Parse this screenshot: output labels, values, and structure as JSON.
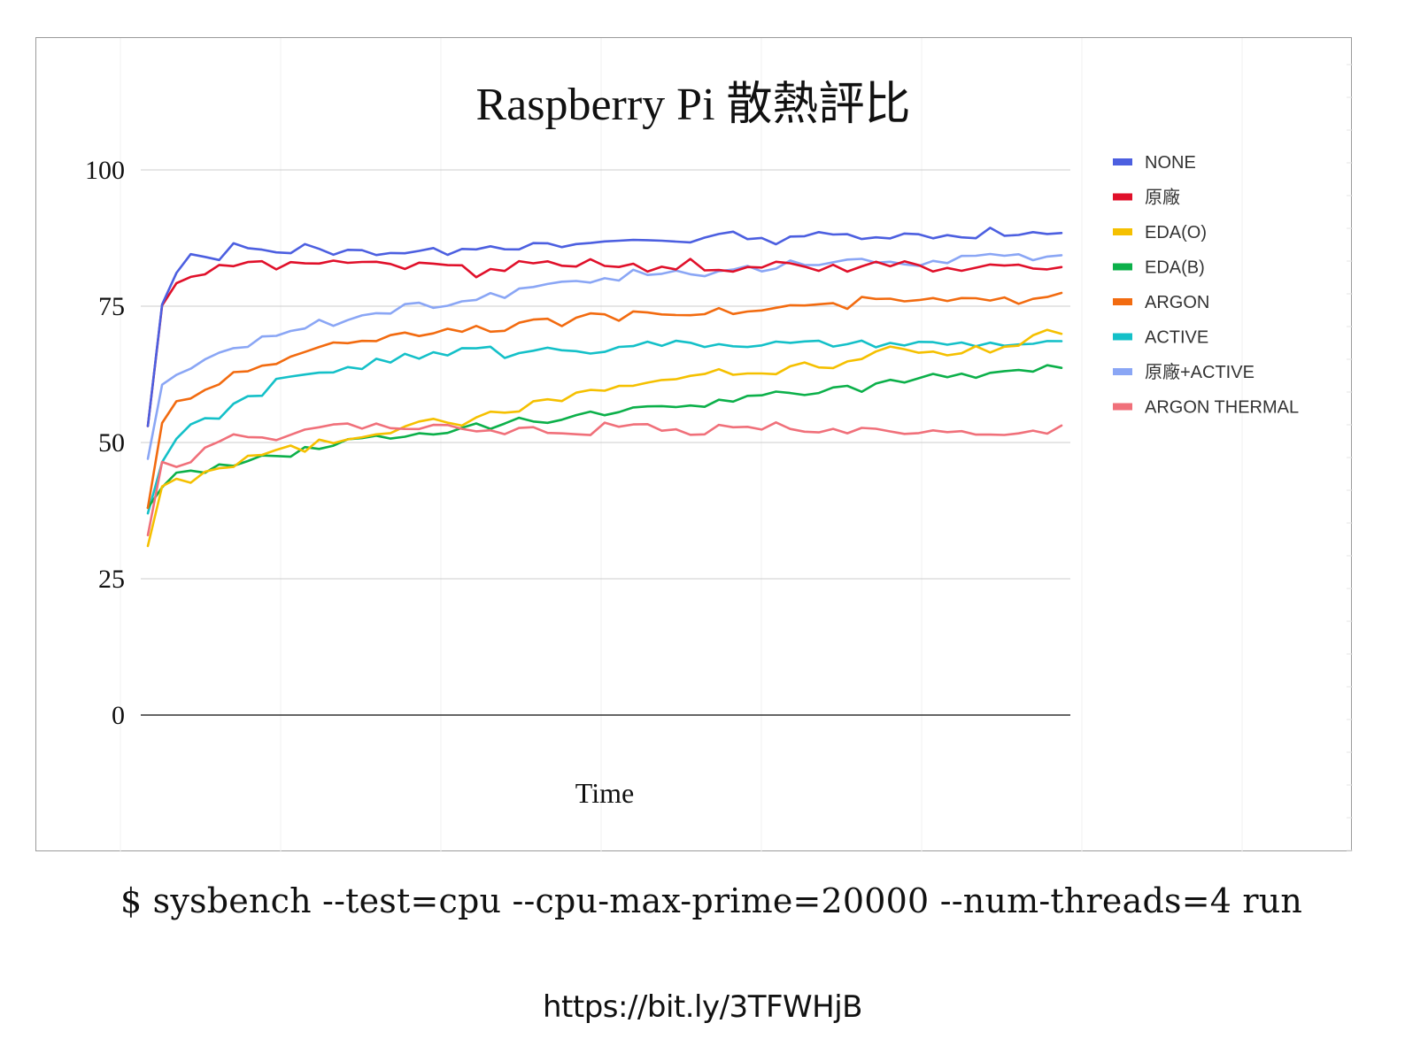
{
  "chart_data": {
    "type": "line",
    "title": "Raspberry Pi 散熱評比",
    "xlabel": "Time",
    "ylabel": "",
    "ylim": [
      0,
      100
    ],
    "yticks": [
      0,
      25,
      50,
      75,
      100
    ],
    "grid": true,
    "legend": "right",
    "points": 65,
    "series": [
      {
        "name": "NONE",
        "color": "#4C5FE0",
        "values": [
          53,
          75,
          81,
          84,
          84,
          84,
          86,
          86,
          86,
          85,
          85,
          86,
          85,
          85,
          85,
          85,
          85,
          85,
          85,
          85,
          85,
          85,
          86,
          86,
          86,
          86,
          86,
          86,
          86,
          86,
          86,
          86,
          87,
          87,
          87,
          87,
          87,
          87,
          87,
          88,
          88,
          88,
          88,
          87,
          87,
          88,
          88,
          88,
          88,
          88,
          88,
          88,
          88,
          88,
          88,
          88,
          88,
          88,
          88,
          89,
          88,
          88,
          88,
          88,
          88
        ]
      },
      {
        "name": "原廠",
        "color": "#E0102A",
        "values": [
          53,
          75,
          79,
          81,
          81,
          82,
          83,
          83,
          83,
          82,
          83,
          83,
          83,
          83,
          83,
          83,
          83,
          83,
          82,
          83,
          83,
          83,
          82,
          81,
          82,
          82,
          83,
          83,
          83,
          82,
          82,
          83,
          82,
          82,
          83,
          82,
          82,
          82,
          83,
          82,
          82,
          82,
          82,
          82,
          83,
          83,
          82,
          82,
          82,
          82,
          83,
          83,
          83,
          83,
          82,
          82,
          82,
          82,
          82,
          82,
          82,
          82,
          82,
          82,
          82
        ]
      },
      {
        "name": "EDA(O)",
        "color": "#F5C000",
        "values": [
          31,
          42,
          43,
          43,
          45,
          45,
          46,
          47,
          48,
          49,
          49,
          49,
          50,
          50,
          51,
          51,
          52,
          52,
          53,
          54,
          54,
          54,
          53,
          54,
          56,
          56,
          56,
          57,
          58,
          58,
          59,
          59,
          60,
          60,
          61,
          61,
          61,
          62,
          62,
          63,
          63,
          63,
          63,
          63,
          63,
          64,
          64,
          64,
          64,
          65,
          66,
          66,
          67,
          67,
          67,
          66,
          66,
          67,
          67,
          67,
          68,
          68,
          69,
          70,
          70
        ]
      },
      {
        "name": "EDA(B)",
        "color": "#0CB04A",
        "values": [
          38,
          42,
          44,
          45,
          45,
          46,
          46,
          47,
          47,
          48,
          48,
          49,
          49,
          50,
          50,
          51,
          51,
          51,
          51,
          52,
          52,
          52,
          53,
          53,
          53,
          54,
          54,
          54,
          54,
          54,
          55,
          55,
          55,
          55,
          56,
          56,
          56,
          57,
          57,
          57,
          58,
          58,
          58,
          58,
          59,
          59,
          59,
          59,
          60,
          60,
          60,
          61,
          61,
          61,
          62,
          62,
          62,
          62,
          62,
          63,
          63,
          63,
          63,
          64,
          64
        ]
      },
      {
        "name": "ARGON",
        "color": "#F26B10",
        "values": [
          38,
          54,
          57,
          58,
          59,
          61,
          63,
          63,
          64,
          65,
          66,
          67,
          67,
          68,
          68,
          69,
          69,
          70,
          70,
          70,
          70,
          71,
          71,
          71,
          71,
          71,
          72,
          72,
          72,
          72,
          73,
          73,
          73,
          73,
          74,
          74,
          74,
          74,
          74,
          74,
          74,
          74,
          74,
          74,
          75,
          75,
          75,
          75,
          75,
          75,
          76,
          76,
          76,
          76,
          76,
          76,
          76,
          76,
          76,
          76,
          76,
          76,
          77,
          77,
          78
        ]
      },
      {
        "name": "ACTIVE",
        "color": "#14C0C8",
        "values": [
          37,
          47,
          50,
          53,
          54,
          55,
          57,
          58,
          59,
          61,
          62,
          62,
          63,
          63,
          64,
          64,
          65,
          65,
          66,
          66,
          66,
          66,
          67,
          67,
          67,
          66,
          67,
          67,
          67,
          67,
          67,
          67,
          67,
          68,
          68,
          68,
          68,
          68,
          68,
          68,
          68,
          68,
          68,
          68,
          68,
          68,
          68,
          68,
          68,
          68,
          68,
          68,
          68,
          68,
          68,
          68,
          68,
          68,
          68,
          68,
          68,
          68,
          68,
          68,
          68
        ]
      },
      {
        "name": "原廠+ACTIVE",
        "color": "#8AA6F5",
        "values": [
          47,
          60,
          63,
          63,
          65,
          66,
          67,
          68,
          69,
          69,
          70,
          71,
          72,
          72,
          73,
          74,
          74,
          74,
          75,
          75,
          75,
          75,
          76,
          76,
          77,
          77,
          78,
          78,
          79,
          79,
          80,
          80,
          80,
          80,
          81,
          81,
          81,
          81,
          81,
          81,
          82,
          82,
          82,
          82,
          82,
          83,
          83,
          83,
          83,
          83,
          83,
          83,
          83,
          83,
          83,
          83,
          83,
          84,
          84,
          84,
          84,
          84,
          84,
          84,
          84
        ]
      },
      {
        "name": "ARGON THERMAL",
        "color": "#F0707A",
        "values": [
          33,
          46,
          46,
          47,
          49,
          50,
          51,
          51,
          51,
          50,
          52,
          53,
          53,
          53,
          53,
          52,
          53,
          53,
          52,
          52,
          53,
          53,
          53,
          52,
          52,
          52,
          53,
          53,
          52,
          52,
          52,
          52,
          53,
          53,
          53,
          53,
          52,
          52,
          52,
          52,
          53,
          53,
          53,
          52,
          53,
          52,
          52,
          52,
          52,
          52,
          52,
          52,
          52,
          52,
          52,
          52,
          52,
          52,
          52,
          52,
          52,
          52,
          52,
          52,
          53
        ]
      }
    ]
  },
  "footer": {
    "command": "$ sysbench --test=cpu --cpu-max-prime=20000 --num-threads=4 run",
    "url": "https://bit.ly/3TFWHjB"
  }
}
